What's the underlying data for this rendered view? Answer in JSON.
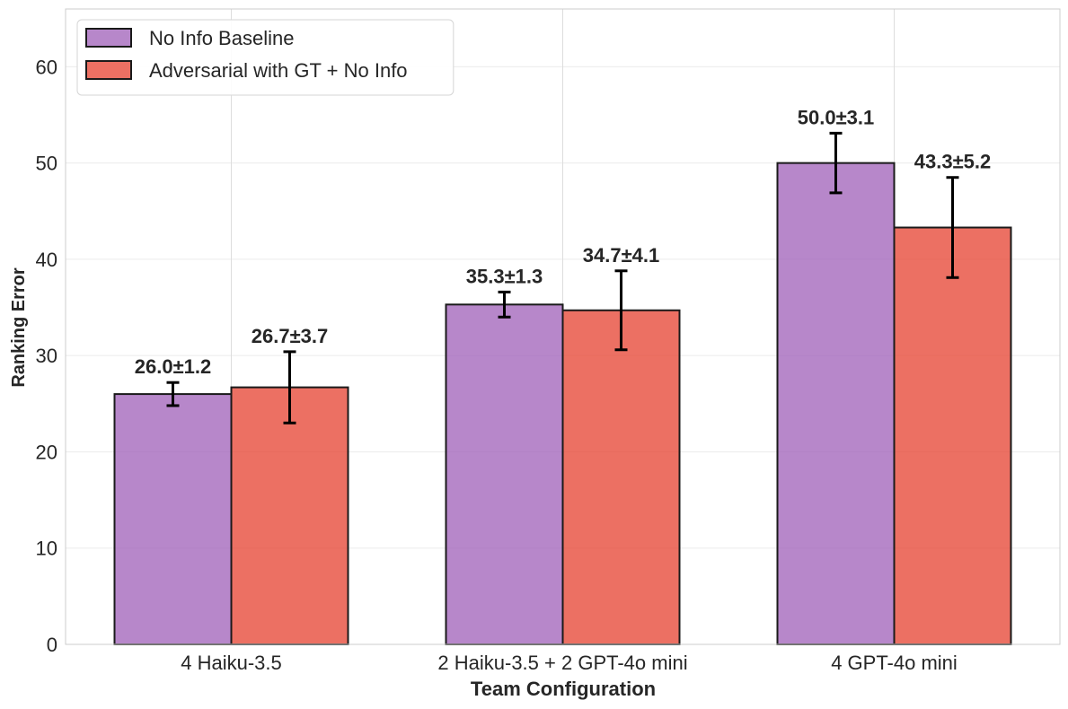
{
  "chart_data": {
    "type": "bar",
    "title": "",
    "xlabel": "Team Configuration",
    "ylabel": "Ranking Error",
    "ylim": [
      0,
      66
    ],
    "yticks": [
      0,
      10,
      20,
      30,
      40,
      50,
      60
    ],
    "grid": true,
    "legend_position": "top-left",
    "categories": [
      "4 Haiku-3.5",
      "2 Haiku-3.5 + 2 GPT-4o mini",
      "4 GPT-4o mini"
    ],
    "series": [
      {
        "name": "No Info Baseline",
        "color": "#a569bd",
        "values": [
          26.0,
          35.3,
          50.0
        ],
        "errors": [
          1.2,
          1.3,
          3.1
        ],
        "labels": [
          "26.0±1.2",
          "35.3±1.3",
          "50.0±3.1"
        ]
      },
      {
        "name": "Adversarial with GT + No Info",
        "color": "#e74c3c",
        "values": [
          26.7,
          34.7,
          43.3
        ],
        "errors": [
          3.7,
          4.1,
          5.2
        ],
        "labels": [
          "26.7±3.7",
          "34.7±4.1",
          "43.3±5.2"
        ]
      }
    ]
  }
}
